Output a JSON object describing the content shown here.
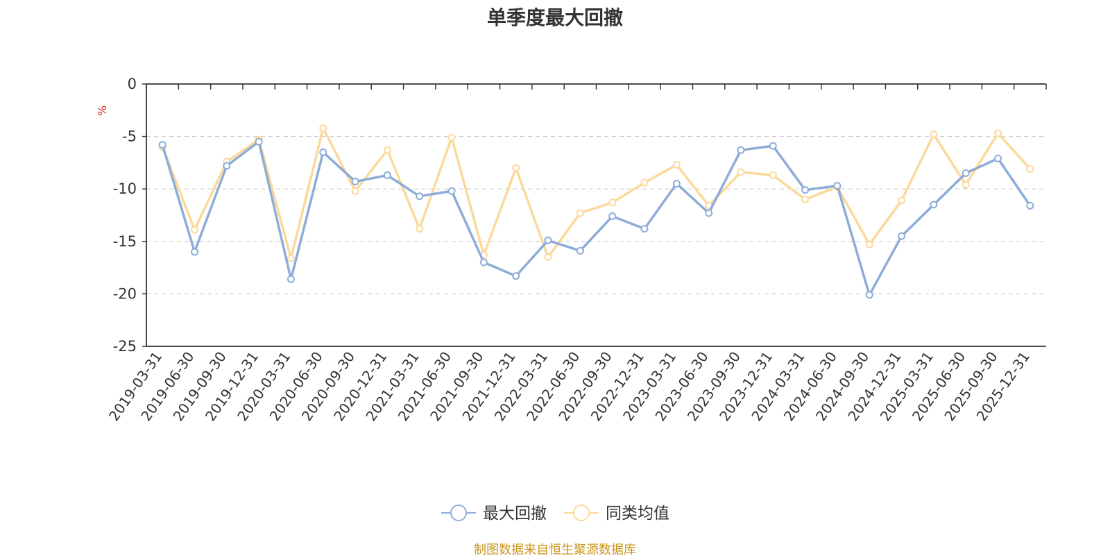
{
  "chart_data": {
    "type": "line",
    "title": "单季度最大回撤",
    "ylabel": "%",
    "ylim": [
      -25,
      0
    ],
    "yticks": [
      0,
      -5,
      -10,
      -15,
      -20,
      -25
    ],
    "grid": "y-dashed",
    "legend_position": "bottom-center",
    "categories": [
      "2019-03-31",
      "2019-06-30",
      "2019-09-30",
      "2019-12-31",
      "2020-03-31",
      "2020-06-30",
      "2020-09-30",
      "2020-12-31",
      "2021-03-31",
      "2021-06-30",
      "2021-09-30",
      "2021-12-31",
      "2022-03-31",
      "2022-06-30",
      "2022-09-30",
      "2022-12-31",
      "2023-03-31",
      "2023-06-30",
      "2023-09-30",
      "2023-12-31",
      "2024-03-31",
      "2024-06-30",
      "2024-09-30",
      "2024-12-31",
      "2025-03-31",
      "2025-06-30",
      "2025-09-30",
      "2025-12-31"
    ],
    "series": [
      {
        "name": "最大回撤",
        "color": "#8eacd9",
        "values": [
          -5.8,
          -16.0,
          -7.8,
          -5.5,
          -18.6,
          -6.5,
          -9.3,
          -8.7,
          -10.7,
          -10.2,
          -17.0,
          -18.3,
          -14.9,
          -15.9,
          -12.6,
          -13.8,
          -9.5,
          -12.3,
          -6.3,
          -5.9,
          -10.1,
          -9.7,
          -20.1,
          -14.5,
          -11.5,
          -8.5,
          -7.1,
          -11.6
        ]
      },
      {
        "name": "同类均值",
        "color": "#fbd99a",
        "values": [
          -6.0,
          -13.9,
          -7.4,
          -5.3,
          -16.6,
          -4.2,
          -10.2,
          -6.3,
          -13.8,
          -5.1,
          -16.3,
          -8.0,
          -16.5,
          -12.3,
          -11.3,
          -9.4,
          -7.7,
          -11.6,
          -8.4,
          -8.7,
          -11.0,
          -9.8,
          -15.3,
          -11.1,
          -4.8,
          -9.6,
          -4.7,
          -8.1
        ]
      }
    ],
    "source": "制图数据来自恒生聚源数据库"
  }
}
